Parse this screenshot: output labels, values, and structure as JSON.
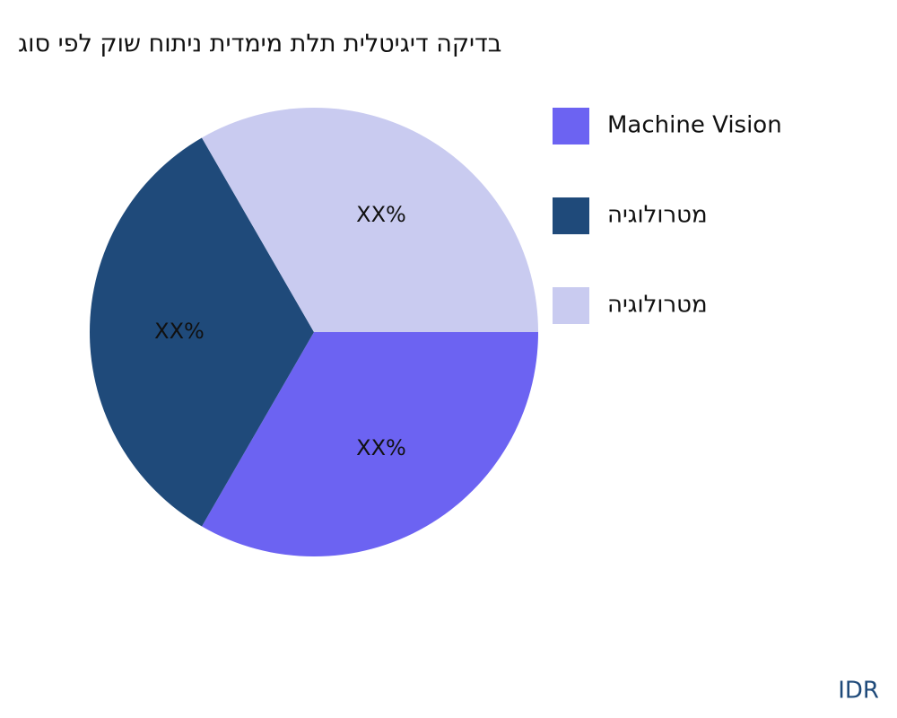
{
  "chart_data": {
    "type": "pie",
    "title": "גוס יפל קוש חותינ תידמימ תלת תילטיגיד הקידב",
    "categories": [
      "Machine Vision",
      "היגולורטמ",
      "היגולורטמ"
    ],
    "values": [
      33.33,
      33.33,
      33.33
    ],
    "value_labels": [
      "XX%",
      "XX%",
      "XX%"
    ],
    "colors": [
      "#6c63f2",
      "#1f4a7a",
      "#c9cbf0"
    ],
    "legend": "right",
    "watermark": "IDR"
  }
}
